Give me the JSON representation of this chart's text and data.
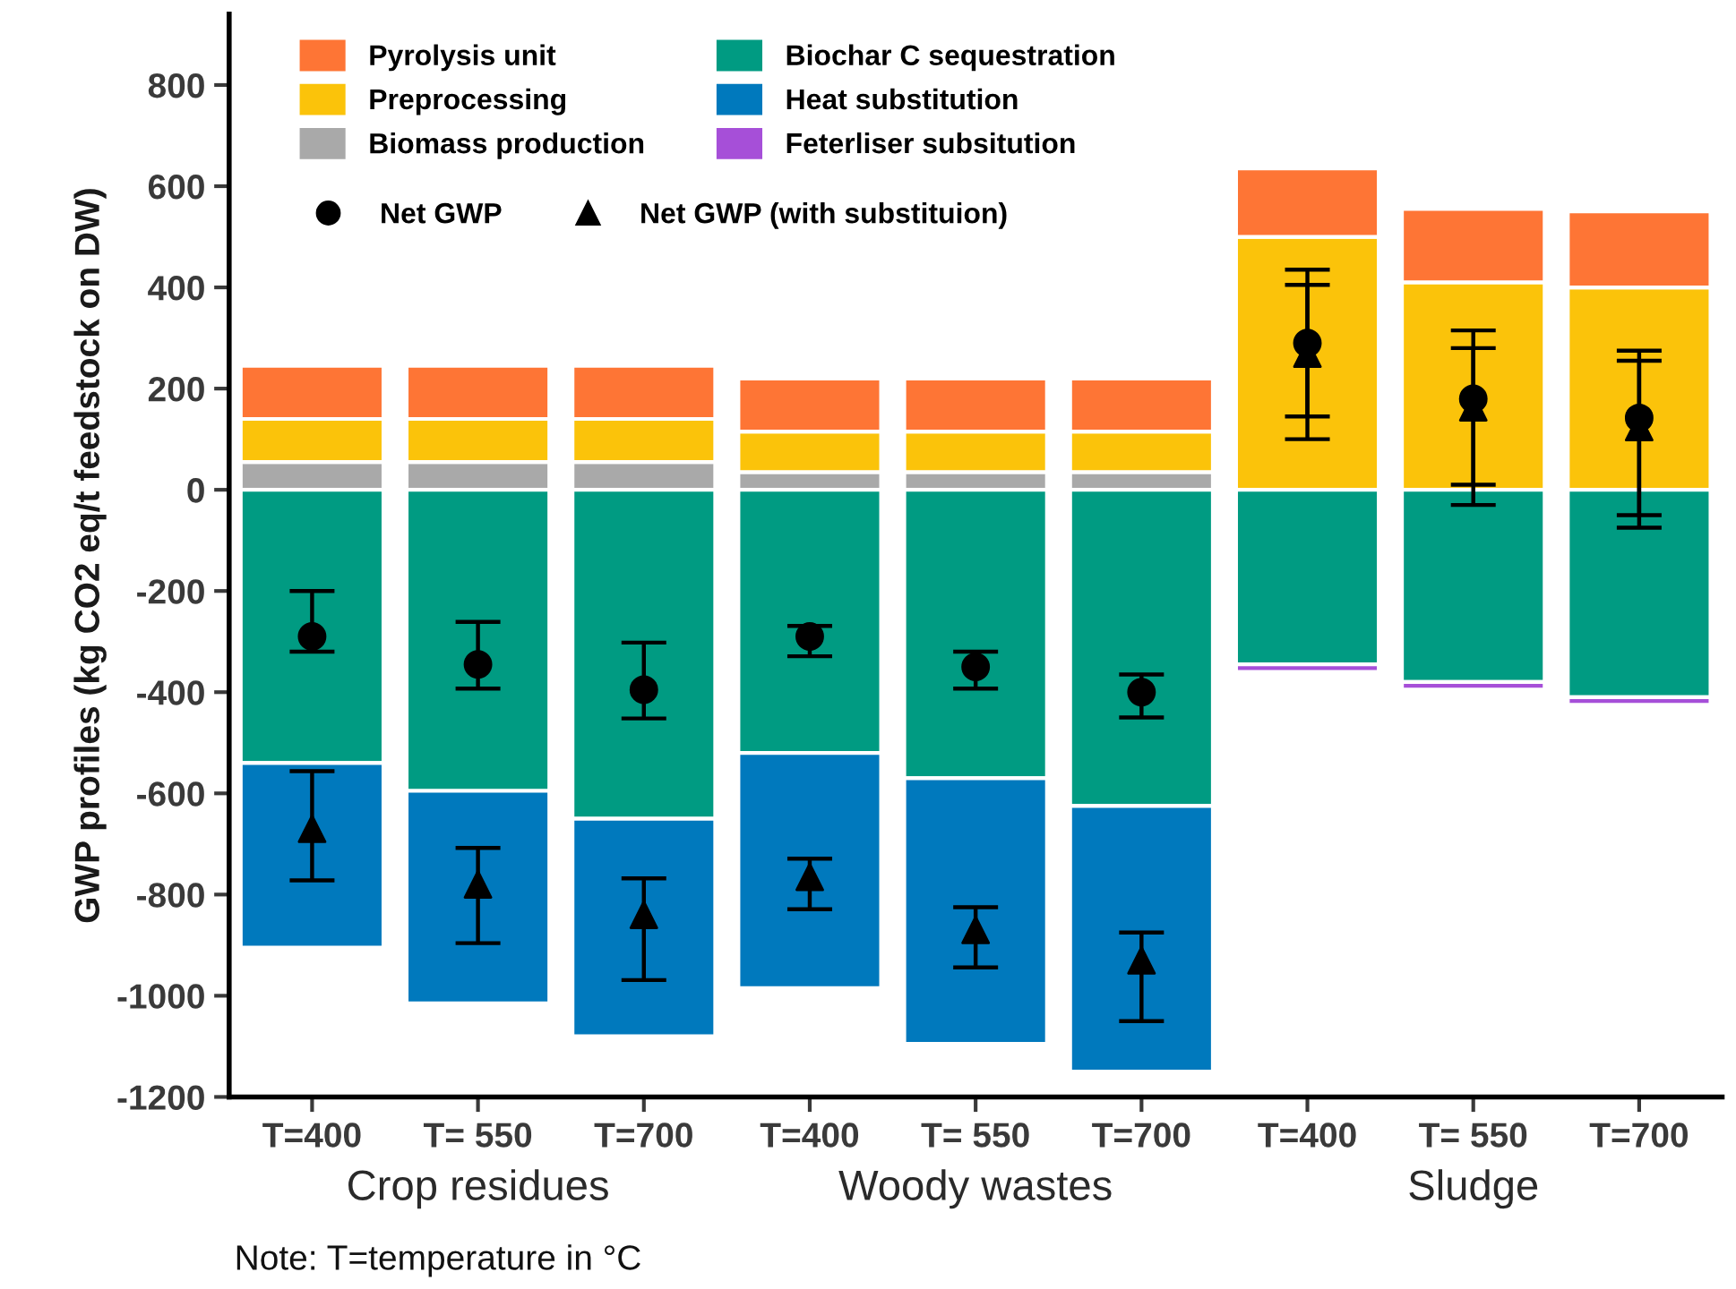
{
  "chart_data": {
    "type": "bar",
    "stacked": true,
    "ylabel": "GWP profiles (kg CO2 eq/t feedstock on DW)",
    "categories": [
      "T=400",
      "T= 550",
      "T=700",
      "T=400",
      "T= 550",
      "T=700",
      "T=400",
      "T= 550",
      "T=700"
    ],
    "series": [
      {
        "name": "Biomass production",
        "color": "#a9a9a9",
        "values": [
          55,
          55,
          55,
          35,
          35,
          35,
          null,
          null,
          null
        ]
      },
      {
        "name": "Preprocessing",
        "color": "#fbc30a",
        "values": [
          85,
          85,
          85,
          80,
          80,
          80,
          500,
          410,
          400
        ]
      },
      {
        "name": "Pyrolysis unit",
        "color": "#fe7535",
        "values": [
          105,
          105,
          105,
          105,
          105,
          105,
          135,
          145,
          150
        ]
      },
      {
        "name": "Biochar C sequestration",
        "color": "#009b82",
        "values": [
          -540,
          -595,
          -650,
          -520,
          -570,
          -625,
          -345,
          -380,
          -410
        ]
      },
      {
        "name": "Heat substitution",
        "color": "#0079bd",
        "values": [
          -365,
          -420,
          -430,
          -465,
          -525,
          -525,
          null,
          null,
          null
        ]
      },
      {
        "name": "Feterliser subsitution",
        "color": "#a64fd8",
        "values": [
          null,
          null,
          null,
          null,
          null,
          null,
          -15,
          -15,
          -15
        ]
      },
      {
        "name": "Net GWP",
        "type": "scatter",
        "marker": "circle",
        "color": "#000000",
        "values": [
          -290,
          -345,
          -395,
          -290,
          -350,
          -400,
          290,
          180,
          142
        ],
        "errors": [
          [
            -320,
            -200
          ],
          [
            -393,
            -261
          ],
          [
            -452,
            -302
          ],
          [
            -329,
            -269
          ],
          [
            -393,
            -320
          ],
          [
            -450,
            -365
          ],
          [
            145,
            435
          ],
          [
            10,
            315
          ],
          [
            -50,
            275
          ]
        ]
      },
      {
        "name": "Net GWP (with substituion)",
        "type": "scatter",
        "marker": "triangle",
        "color": "#000000",
        "values": [
          -670,
          -780,
          -840,
          -765,
          -870,
          -930,
          269,
          163,
          124
        ],
        "errors": [
          [
            -772,
            -556
          ],
          [
            -896,
            -708
          ],
          [
            -969,
            -768
          ],
          [
            -829,
            -729
          ],
          [
            -944,
            -825
          ],
          [
            -1050,
            -875
          ],
          [
            100,
            405
          ],
          [
            -30,
            280
          ],
          [
            -75,
            255
          ]
        ]
      }
    ],
    "ylim": [
      -1200,
      940
    ],
    "yticks": [
      -1200,
      -1000,
      -800,
      -600,
      -400,
      -200,
      0,
      200,
      400,
      600,
      800
    ],
    "grid": false,
    "legend": "top",
    "annotations": [
      "Crop residues",
      "Woody wastes",
      "Sludge",
      "Note: T=temperature in °C"
    ]
  }
}
